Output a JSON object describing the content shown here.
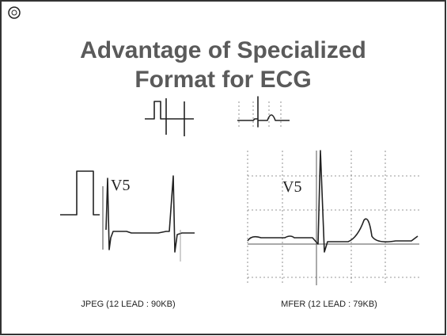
{
  "slide": {
    "title_lines": [
      "Advantage of Specialized",
      "Format for ECG"
    ],
    "panels": [
      {
        "lead_label": "V5",
        "caption": "JPEG (12 LEAD : 90KB)"
      },
      {
        "lead_label": "V5",
        "caption": "MFER (12 LEAD : 79KB)"
      }
    ]
  }
}
